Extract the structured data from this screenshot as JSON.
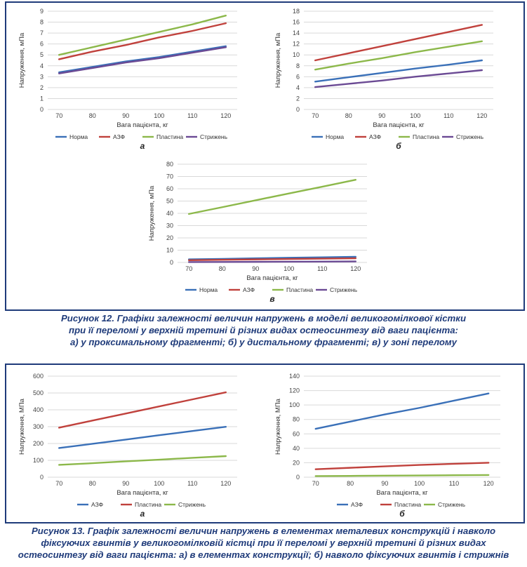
{
  "colors": {
    "blue": "#3a70b8",
    "red": "#c0413c",
    "green": "#8cb84a",
    "purple": "#6b4a94",
    "caption": "#1f3b7a",
    "grid": "#d9d9d9"
  },
  "figure12": {
    "caption_lines": [
      "Рисунок 12. Графіки залежності величин напружень в моделі великогомілкової кістки",
      "при її переломі у верхній третині й різних видах остеосинтезу від ваги пацієнта:",
      "а) у проксимальному фрагменті; б) у дистальному фрагменті; в) у зоні перелому"
    ]
  },
  "figure13": {
    "caption_lines": [
      "Рисунок 13. Графік залежності величин напружень в елементах металевих конструкцій і навколо",
      "фіксуючих гвинтів у великогомілковій кістці при її переломі у верхній третині й різних видах",
      "остеосинтезу від ваги пацієнта: а) в елементах конструкції; б) навколо фіксуючих гвинтів і стрижнів"
    ]
  },
  "chart_data": [
    {
      "id": "fig12a",
      "type": "line",
      "sublabel": "а",
      "xlabel": "Вага пацієнта, кг",
      "ylabel": "Напруження, мПа",
      "x": [
        70,
        80,
        90,
        100,
        110,
        120
      ],
      "ylim": [
        0,
        9
      ],
      "ystep": 1,
      "grid": true,
      "legend_position": "bottom",
      "series": [
        {
          "name": "Норма",
          "color": "blue",
          "values": [
            3.4,
            3.9,
            4.4,
            4.8,
            5.3,
            5.8
          ]
        },
        {
          "name": "АЗФ",
          "color": "red",
          "values": [
            4.6,
            5.3,
            5.9,
            6.6,
            7.2,
            7.9
          ]
        },
        {
          "name": "Пластина",
          "color": "green",
          "values": [
            5.0,
            5.7,
            6.4,
            7.1,
            7.8,
            8.6
          ]
        },
        {
          "name": "Стрижень",
          "color": "purple",
          "values": [
            3.3,
            3.8,
            4.3,
            4.7,
            5.2,
            5.7
          ]
        }
      ]
    },
    {
      "id": "fig12b",
      "type": "line",
      "sublabel": "б",
      "xlabel": "Вага пацієнта, кг",
      "ylabel": "Напруження, мПа",
      "x": [
        70,
        80,
        90,
        100,
        110,
        120
      ],
      "ylim": [
        0,
        18
      ],
      "ystep": 2,
      "grid": true,
      "legend_position": "bottom",
      "series": [
        {
          "name": "Норма",
          "color": "blue",
          "values": [
            5.1,
            5.9,
            6.7,
            7.5,
            8.2,
            9.0
          ]
        },
        {
          "name": "АЗФ",
          "color": "red",
          "values": [
            9.0,
            10.3,
            11.6,
            12.9,
            14.2,
            15.5
          ]
        },
        {
          "name": "Пластина",
          "color": "green",
          "values": [
            7.3,
            8.4,
            9.4,
            10.5,
            11.5,
            12.5
          ]
        },
        {
          "name": "Стрижень",
          "color": "purple",
          "values": [
            4.1,
            4.7,
            5.3,
            6.0,
            6.6,
            7.2
          ]
        }
      ]
    },
    {
      "id": "fig12c",
      "type": "line",
      "sublabel": "в",
      "xlabel": "Вага пацієнта, кг",
      "ylabel": "Напруження, мПа",
      "x": [
        70,
        80,
        90,
        100,
        110,
        120
      ],
      "ylim": [
        0,
        80
      ],
      "ystep": 10,
      "grid": true,
      "legend_position": "bottom",
      "series": [
        {
          "name": "Норма",
          "color": "blue",
          "values": [
            2.5,
            2.9,
            3.4,
            3.8,
            4.2,
            4.6
          ]
        },
        {
          "name": "АЗФ",
          "color": "red",
          "values": [
            1.8,
            2.2,
            2.5,
            2.8,
            3.1,
            3.4
          ]
        },
        {
          "name": "Пластина",
          "color": "green",
          "values": [
            39.5,
            45.0,
            50.6,
            56.2,
            61.7,
            67.3
          ]
        },
        {
          "name": "Стрижень",
          "color": "purple",
          "values": [
            0.3,
            0.4,
            0.5,
            0.6,
            0.7,
            0.8
          ]
        }
      ]
    },
    {
      "id": "fig13a",
      "type": "line",
      "sublabel": "а",
      "xlabel": "Вага пацієнта, кг",
      "ylabel": "Напруження, МПа",
      "x": [
        70,
        80,
        90,
        100,
        110,
        120
      ],
      "ylim": [
        0,
        600
      ],
      "ystep": 100,
      "grid": true,
      "legend_position": "bottom",
      "series": [
        {
          "name": "АЗФ",
          "color": "blue",
          "values": [
            173,
            198,
            223,
            249,
            274,
            299
          ]
        },
        {
          "name": "Пластина",
          "color": "red",
          "values": [
            294,
            336,
            378,
            420,
            462,
            504
          ]
        },
        {
          "name": "Стрижень",
          "color": "green",
          "values": [
            73,
            83,
            94,
            104,
            115,
            125
          ]
        }
      ]
    },
    {
      "id": "fig13b",
      "type": "line",
      "sublabel": "б",
      "xlabel": "Вага пацієнта, кг",
      "ylabel": "Напруження, МПа",
      "x": [
        70,
        80,
        90,
        100,
        110,
        120
      ],
      "ylim": [
        0,
        140
      ],
      "ystep": 20,
      "grid": true,
      "legend_position": "bottom",
      "series": [
        {
          "name": "АЗФ",
          "color": "blue",
          "values": [
            67,
            77,
            87,
            96,
            106,
            116
          ]
        },
        {
          "name": "Пластина",
          "color": "red",
          "values": [
            11,
            13,
            15,
            17,
            18.5,
            20
          ]
        },
        {
          "name": "Стрижень",
          "color": "green",
          "values": [
            1.5,
            1.8,
            2.1,
            2.4,
            2.7,
            3.0
          ]
        }
      ]
    }
  ]
}
